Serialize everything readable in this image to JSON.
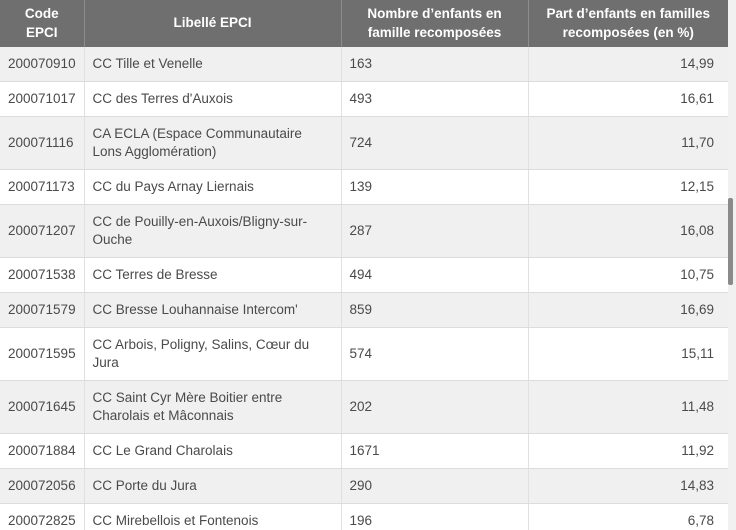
{
  "colors": {
    "header_bg": "#6f6f6f",
    "header_text": "#ffffff",
    "row_odd_bg": "#f0f0f0",
    "row_even_bg": "#ffffff",
    "body_text": "#4a4a4a",
    "scrollbar_thumb": "#8a8a8a"
  },
  "table": {
    "columns": [
      {
        "id": "code",
        "label": "Code EPCI"
      },
      {
        "id": "libelle",
        "label": "Libellé EPCI"
      },
      {
        "id": "nombre",
        "label": "Nombre d’enfants en famille recomposées"
      },
      {
        "id": "part",
        "label": "Part d’enfants en familles recomposées (en %)"
      }
    ],
    "rows": [
      {
        "code": "200070910",
        "libelle": "CC Tille et Venelle",
        "nombre": "163",
        "part": "14,99"
      },
      {
        "code": "200071017",
        "libelle": "CC des Terres d'Auxois",
        "nombre": "493",
        "part": "16,61"
      },
      {
        "code": "200071116",
        "libelle": "CA ECLA (Espace Communautaire Lons Agglomération)",
        "nombre": "724",
        "part": "11,70"
      },
      {
        "code": "200071173",
        "libelle": "CC du Pays Arnay Liernais",
        "nombre": "139",
        "part": "12,15"
      },
      {
        "code": "200071207",
        "libelle": "CC de Pouilly-en-Auxois/Bligny-sur-Ouche",
        "nombre": "287",
        "part": "16,08"
      },
      {
        "code": "200071538",
        "libelle": "CC Terres de Bresse",
        "nombre": "494",
        "part": "10,75"
      },
      {
        "code": "200071579",
        "libelle": "CC Bresse Louhannaise Intercom'",
        "nombre": "859",
        "part": "16,69"
      },
      {
        "code": "200071595",
        "libelle": "CC Arbois, Poligny, Salins, Cœur du Jura",
        "nombre": "574",
        "part": "15,11"
      },
      {
        "code": "200071645",
        "libelle": "CC Saint Cyr Mère Boitier entre Charolais et Mâconnais",
        "nombre": "202",
        "part": "11,48"
      },
      {
        "code": "200071884",
        "libelle": "CC Le Grand Charolais",
        "nombre": "1671",
        "part": "11,92"
      },
      {
        "code": "200072056",
        "libelle": "CC Porte du Jura",
        "nombre": "290",
        "part": "14,83"
      },
      {
        "code": "200072825",
        "libelle": "CC Mirebellois et Fontenois",
        "nombre": "196",
        "part": "6,78"
      }
    ]
  }
}
